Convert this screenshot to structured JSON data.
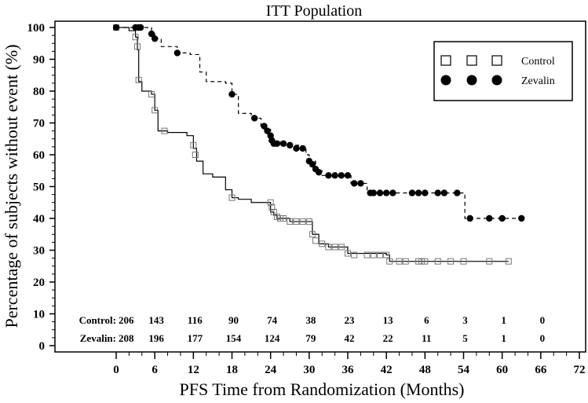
{
  "chart_data": {
    "type": "line",
    "subtype": "kaplan-meier",
    "title": "ITT Population",
    "xlabel": "PFS Time from Randomization (Months)",
    "ylabel": "Percentage of subjects without event (%)",
    "xlim": [
      0,
      72
    ],
    "ylim": [
      0,
      100
    ],
    "x_ticks": [
      0,
      6,
      12,
      18,
      24,
      30,
      36,
      42,
      48,
      54,
      60,
      66,
      72
    ],
    "y_ticks": [
      0,
      10,
      20,
      30,
      40,
      50,
      60,
      70,
      80,
      90,
      100
    ],
    "grid": false,
    "legend_position": "top-right",
    "series": [
      {
        "name": "Control",
        "marker": "open-square",
        "line_style": "solid",
        "color": "#000000",
        "marker_color": "#777777",
        "steps": [
          [
            0,
            100
          ],
          [
            2,
            99
          ],
          [
            3,
            97
          ],
          [
            3.3,
            93
          ],
          [
            3.5,
            83
          ],
          [
            4,
            80
          ],
          [
            5.5,
            79
          ],
          [
            6,
            74
          ],
          [
            6.5,
            67.5
          ],
          [
            8,
            67
          ],
          [
            11,
            66
          ],
          [
            12,
            62
          ],
          [
            12.5,
            58
          ],
          [
            13.5,
            54
          ],
          [
            15,
            53
          ],
          [
            17,
            49
          ],
          [
            18,
            46.5
          ],
          [
            19,
            46
          ],
          [
            21,
            45
          ],
          [
            23.5,
            45
          ],
          [
            24,
            42
          ],
          [
            24.5,
            41
          ],
          [
            25,
            40
          ],
          [
            27,
            39
          ],
          [
            30,
            39
          ],
          [
            30.5,
            35
          ],
          [
            31.5,
            32
          ],
          [
            33,
            31
          ],
          [
            36,
            29
          ],
          [
            42,
            28.5
          ],
          [
            42.5,
            26.5
          ],
          [
            61,
            26.5
          ]
        ],
        "censored": [
          [
            0,
            100
          ],
          [
            3,
            97
          ],
          [
            3.3,
            94
          ],
          [
            3.5,
            83.5
          ],
          [
            5.5,
            79
          ],
          [
            6,
            74
          ],
          [
            7.5,
            67.5
          ],
          [
            12,
            63
          ],
          [
            12.3,
            60
          ],
          [
            18,
            46.5
          ],
          [
            24,
            45
          ],
          [
            24.2,
            43.5
          ],
          [
            24.5,
            42
          ],
          [
            25,
            40.5
          ],
          [
            25.5,
            40
          ],
          [
            26,
            40
          ],
          [
            27,
            39
          ],
          [
            28,
            39
          ],
          [
            29,
            39
          ],
          [
            30,
            39
          ],
          [
            30.5,
            35
          ],
          [
            31,
            33
          ],
          [
            32,
            32
          ],
          [
            33,
            31
          ],
          [
            34,
            31
          ],
          [
            35,
            31
          ],
          [
            36,
            29
          ],
          [
            37,
            28.5
          ],
          [
            39,
            28.5
          ],
          [
            40,
            28.5
          ],
          [
            41,
            28.5
          ],
          [
            42,
            28.5
          ],
          [
            42.5,
            26.5
          ],
          [
            44,
            26.5
          ],
          [
            45,
            26.5
          ],
          [
            47,
            26.5
          ],
          [
            47.5,
            26.5
          ],
          [
            48,
            26.5
          ],
          [
            50,
            26.5
          ],
          [
            52,
            26.5
          ],
          [
            54,
            26.5
          ],
          [
            58,
            26.5
          ],
          [
            61,
            26.5
          ]
        ]
      },
      {
        "name": "Zevalin",
        "marker": "filled-circle",
        "line_style": "dashed",
        "color": "#000000",
        "marker_color": "#000000",
        "steps": [
          [
            0,
            100
          ],
          [
            3.5,
            100
          ],
          [
            5.5,
            98
          ],
          [
            6,
            96.5
          ],
          [
            7,
            94
          ],
          [
            9.5,
            92
          ],
          [
            11.5,
            91.5
          ],
          [
            13,
            86
          ],
          [
            14,
            83
          ],
          [
            17,
            82.5
          ],
          [
            18,
            79
          ],
          [
            19,
            73
          ],
          [
            21,
            71.5
          ],
          [
            22.5,
            69
          ],
          [
            23,
            68
          ],
          [
            24,
            64
          ],
          [
            26,
            63
          ],
          [
            28.5,
            62
          ],
          [
            29.5,
            60
          ],
          [
            30,
            58
          ],
          [
            31,
            55
          ],
          [
            32,
            53.5
          ],
          [
            36,
            53.5
          ],
          [
            36.5,
            51
          ],
          [
            38,
            51
          ],
          [
            39,
            48
          ],
          [
            54,
            48
          ],
          [
            54.2,
            40
          ],
          [
            63,
            40
          ]
        ],
        "censored": [
          [
            0,
            100
          ],
          [
            3,
            100
          ],
          [
            3.5,
            100
          ],
          [
            3.8,
            100
          ],
          [
            5.5,
            98
          ],
          [
            6,
            96.5
          ],
          [
            9.5,
            92
          ],
          [
            18,
            79
          ],
          [
            21.5,
            71.5
          ],
          [
            23,
            69
          ],
          [
            23.5,
            67.5
          ],
          [
            24,
            66
          ],
          [
            24.2,
            64.5
          ],
          [
            24.5,
            63.5
          ],
          [
            25,
            63.5
          ],
          [
            26,
            63.5
          ],
          [
            27,
            63
          ],
          [
            28,
            62
          ],
          [
            29,
            62
          ],
          [
            30,
            58
          ],
          [
            30.5,
            57
          ],
          [
            31,
            55.5
          ],
          [
            31.5,
            54.5
          ],
          [
            33,
            53.5
          ],
          [
            34,
            53.5
          ],
          [
            35,
            53.5
          ],
          [
            36,
            53.5
          ],
          [
            37,
            51
          ],
          [
            38,
            51
          ],
          [
            39.5,
            48
          ],
          [
            40,
            48
          ],
          [
            41,
            48
          ],
          [
            42,
            48
          ],
          [
            43,
            48
          ],
          [
            46,
            48
          ],
          [
            47,
            48
          ],
          [
            48,
            48
          ],
          [
            50,
            48
          ],
          [
            51,
            48
          ],
          [
            53,
            48
          ],
          [
            55,
            40
          ],
          [
            58,
            40
          ],
          [
            60,
            40
          ],
          [
            63,
            40
          ]
        ]
      }
    ],
    "at_risk": {
      "times": [
        0,
        6,
        12,
        18,
        24,
        30,
        36,
        42,
        48,
        54,
        60,
        66,
        72
      ],
      "rows": [
        {
          "label": "Control:",
          "counts": [
            206,
            143,
            116,
            90,
            74,
            38,
            23,
            13,
            6,
            3,
            1,
            0
          ]
        },
        {
          "label": "Zevalin:",
          "counts": [
            208,
            196,
            177,
            154,
            124,
            79,
            42,
            22,
            11,
            5,
            1,
            0
          ]
        }
      ]
    }
  }
}
